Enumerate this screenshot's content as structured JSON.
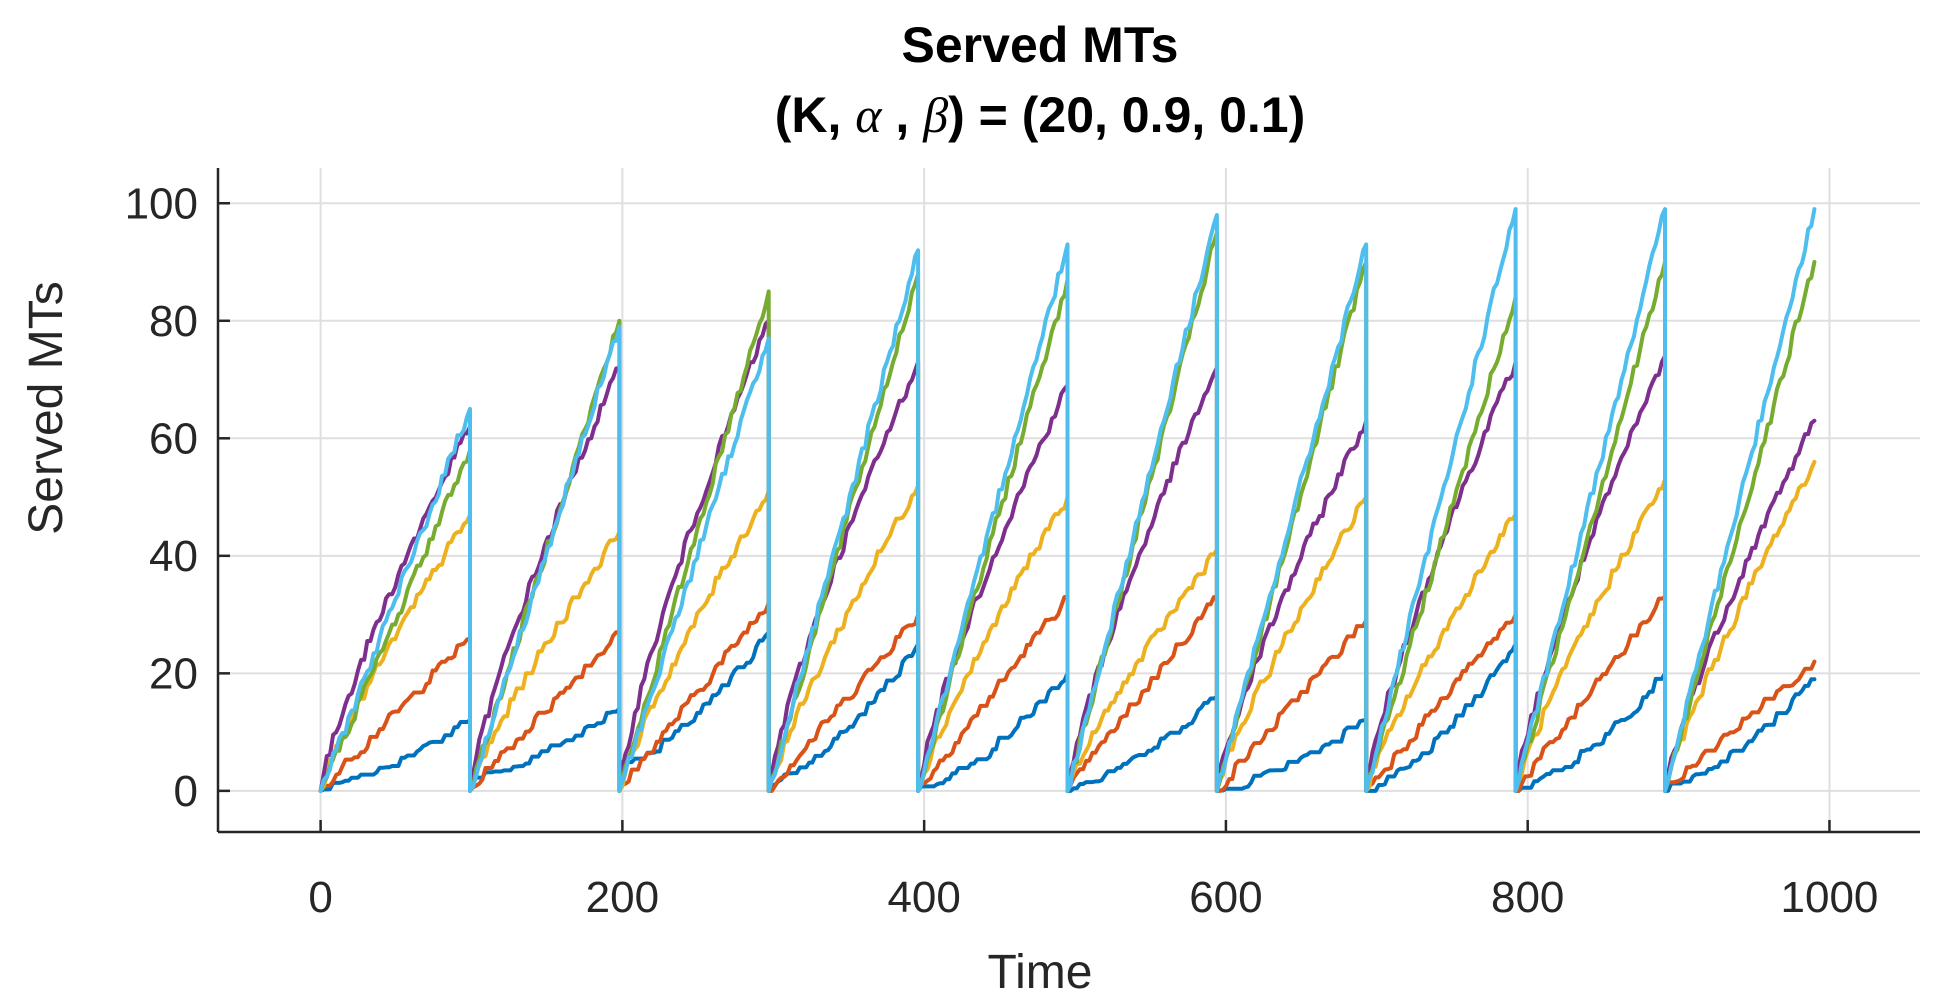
{
  "chart_data": {
    "type": "line",
    "title_line1": "Served MTs",
    "title_line2_prefix": "(K, ",
    "title_alpha": "α",
    "title_sep": " , ",
    "title_beta": "β",
    "title_line2_suffix": ") =  (20, 0.9, 0.1)",
    "xlabel": "Time",
    "ylabel": "Served MTs",
    "xlim": [
      -68,
      1060
    ],
    "ylim": [
      -7,
      106
    ],
    "xticks": [
      0,
      200,
      400,
      600,
      800,
      1000
    ],
    "xtick_labels": [
      "0",
      "200",
      "400",
      "600",
      "800",
      "1000"
    ],
    "yticks": [
      0,
      20,
      40,
      60,
      80,
      100
    ],
    "ytick_labels": [
      "0",
      "20",
      "40",
      "60",
      "80",
      "100"
    ],
    "grid": true,
    "legend": "none",
    "period": 99,
    "segments": 10,
    "last_segment_end": 990,
    "series": [
      {
        "name": "series-1",
        "color": "#0072BD",
        "peaks": [
          12,
          14,
          27,
          25,
          20,
          16,
          12,
          25,
          20,
          19
        ],
        "starts": [
          0,
          2,
          4,
          1,
          0,
          0,
          0,
          0,
          0,
          0
        ],
        "curve": 1.5
      },
      {
        "name": "series-2",
        "color": "#D95319",
        "peaks": [
          26,
          27,
          32,
          30,
          33,
          33,
          29,
          30,
          33,
          22
        ],
        "starts": [
          0,
          0,
          0,
          0,
          0,
          0,
          0,
          0,
          0,
          0
        ],
        "curve": 1.0
      },
      {
        "name": "series-3",
        "color": "#EDB120",
        "peaks": [
          47,
          44,
          51,
          52,
          50,
          41,
          50,
          47,
          53,
          56
        ],
        "starts": [
          0,
          0,
          0,
          0,
          0,
          0,
          0,
          0,
          0,
          0
        ],
        "curve": 0.85
      },
      {
        "name": "series-4",
        "color": "#7E2F8E",
        "peaks": [
          62,
          72,
          80,
          73,
          69,
          72,
          63,
          73,
          74,
          63
        ],
        "starts": [
          0,
          0,
          0,
          0,
          0,
          0,
          0,
          0,
          0,
          0
        ],
        "curve": 0.8
      },
      {
        "name": "series-5",
        "color": "#77AC30",
        "peaks": [
          58,
          80,
          85,
          88,
          87,
          95,
          90,
          84,
          90,
          90
        ],
        "starts": [
          0,
          0,
          0,
          0,
          0,
          0,
          0,
          0,
          0,
          0
        ],
        "curve": 1.0
      },
      {
        "name": "series-6",
        "color": "#4DBEEE",
        "peaks": [
          65,
          79,
          77,
          92,
          93,
          98,
          93,
          99,
          99,
          99
        ],
        "starts": [
          0,
          0,
          0,
          0,
          0,
          0,
          0,
          0,
          0,
          0
        ],
        "curve": 1.0
      }
    ]
  }
}
